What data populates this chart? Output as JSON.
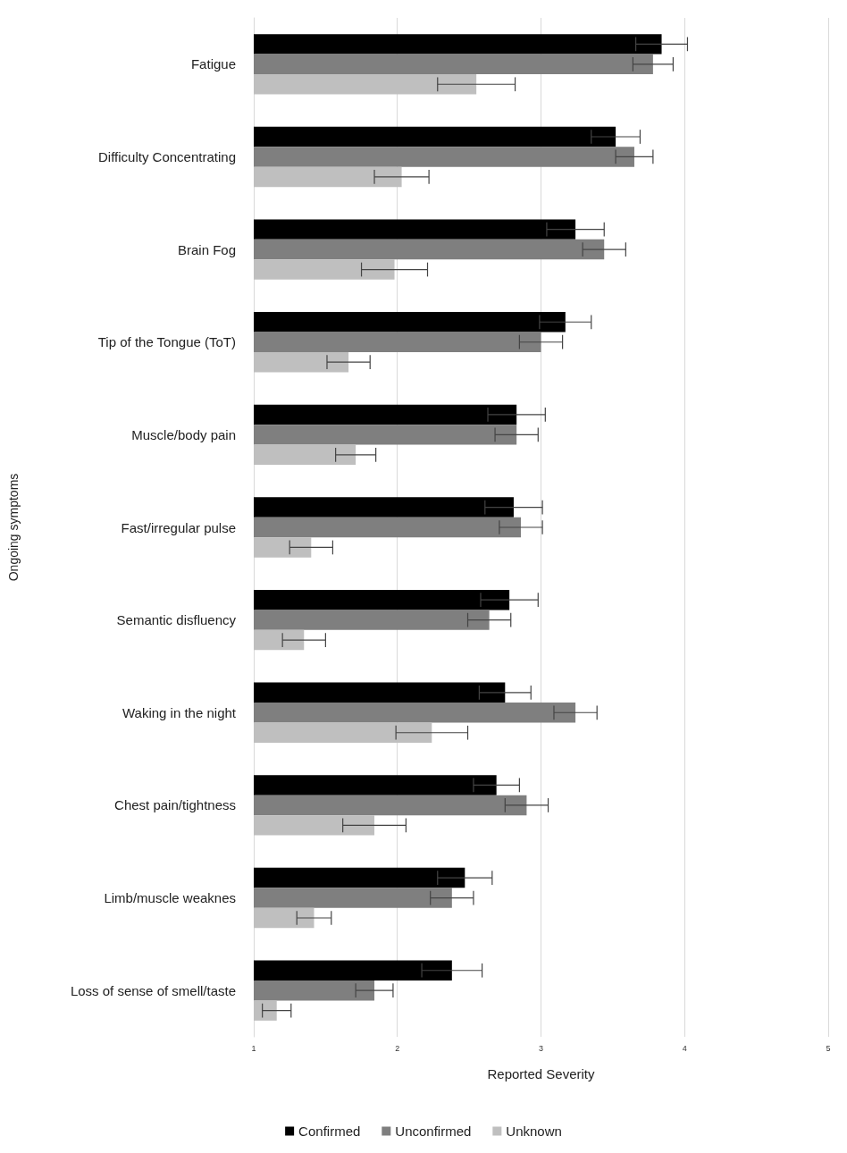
{
  "chart_data": {
    "type": "bar",
    "orientation": "horizontal",
    "xlabel": "Reported Severity",
    "ylabel": "Ongoing symptoms",
    "categories": [
      "Fatigue",
      "Difficulty Concentrating",
      "Brain Fog",
      "Tip of the Tongue (ToT)",
      "Muscle/body pain",
      "Fast/irregular pulse",
      "Semantic disfluency",
      "Waking in the night",
      "Chest pain/tightness",
      "Limb/muscle weaknes",
      "Loss of sense of smell/taste"
    ],
    "series": [
      {
        "name": "Confirmed",
        "color": "#000000",
        "values": [
          3.84,
          3.52,
          3.24,
          3.17,
          2.83,
          2.81,
          2.78,
          2.75,
          2.69,
          2.47,
          2.38
        ],
        "errors": [
          0.18,
          0.17,
          0.2,
          0.18,
          0.2,
          0.2,
          0.2,
          0.18,
          0.16,
          0.19,
          0.21
        ]
      },
      {
        "name": "Unconfirmed",
        "color": "#7f7f7f",
        "values": [
          3.78,
          3.65,
          3.44,
          3.0,
          2.83,
          2.86,
          2.64,
          3.24,
          2.9,
          2.38,
          1.84
        ],
        "errors": [
          0.14,
          0.13,
          0.15,
          0.15,
          0.15,
          0.15,
          0.15,
          0.15,
          0.15,
          0.15,
          0.13
        ]
      },
      {
        "name": "Unknown",
        "color": "#bfbfbf",
        "values": [
          2.55,
          2.03,
          1.98,
          1.66,
          1.71,
          1.4,
          1.35,
          2.24,
          1.84,
          1.42,
          1.16
        ],
        "errors": [
          0.27,
          0.19,
          0.23,
          0.15,
          0.14,
          0.15,
          0.15,
          0.25,
          0.22,
          0.12,
          0.1
        ]
      }
    ],
    "xlim": [
      1,
      5
    ],
    "xticks": [
      1,
      2,
      3,
      4,
      5
    ],
    "grid": "x",
    "legend": "bottom"
  }
}
